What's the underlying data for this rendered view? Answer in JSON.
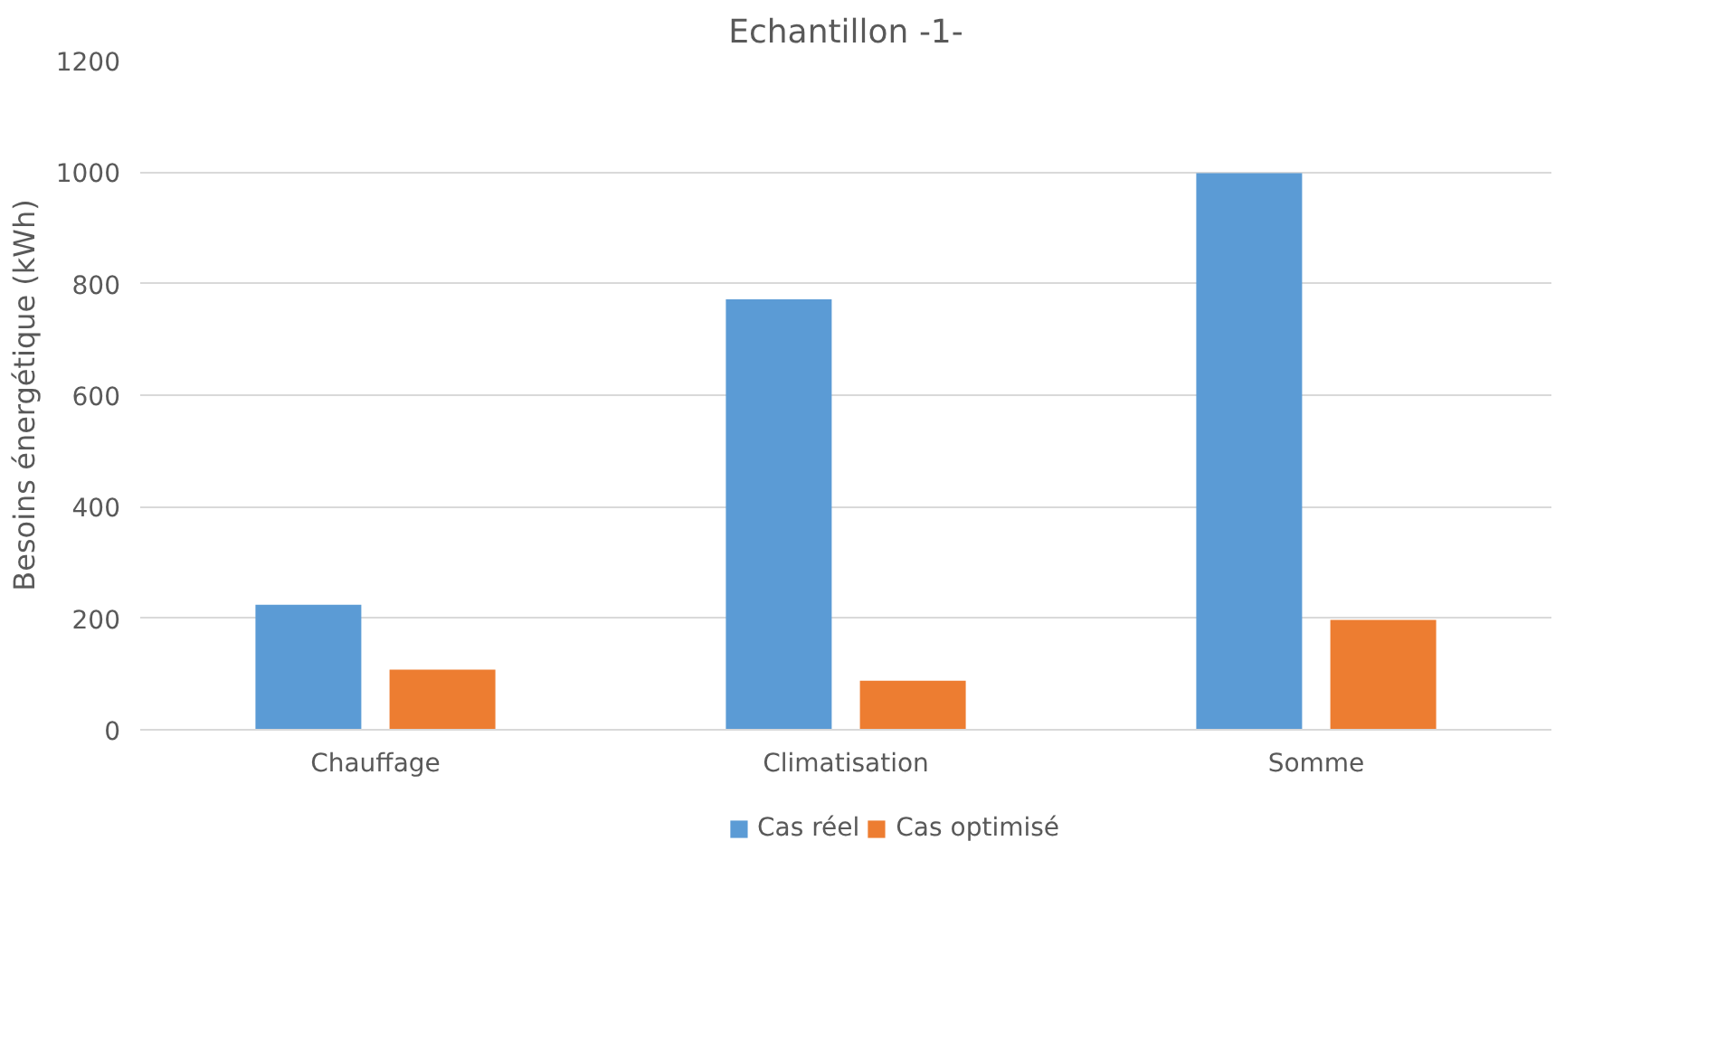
{
  "chart_data": {
    "type": "bar",
    "title": "Echantillon -1-",
    "ylabel": "Besoins énergétique (kWh)",
    "categories": [
      "Chauffage",
      "Climatisation",
      "Somme"
    ],
    "series": [
      {
        "name": "Cas réel",
        "color": "#5b9bd5",
        "values": [
          224,
          772,
          998
        ]
      },
      {
        "name": "Cas optimisé",
        "color": "#ed7d31",
        "values": [
          108,
          88,
          197
        ]
      }
    ],
    "ylim": [
      0,
      1200
    ],
    "yticks": [
      0,
      200,
      400,
      600,
      800,
      1000,
      1200
    ],
    "grid": "y",
    "legend": "bottom"
  }
}
